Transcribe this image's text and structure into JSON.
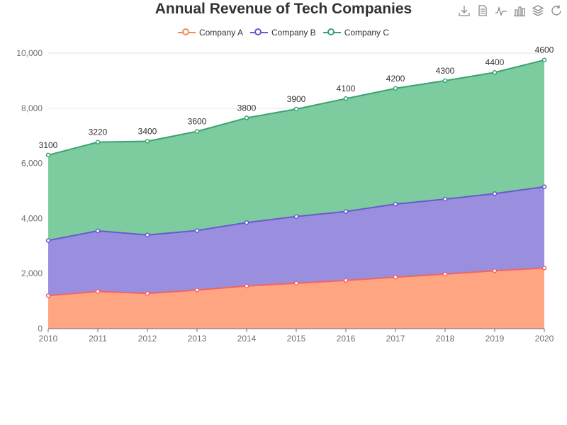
{
  "chart_data": {
    "type": "area",
    "stacked": true,
    "title": "Annual Revenue of Tech Companies",
    "categories": [
      "2010",
      "2011",
      "2012",
      "2013",
      "2014",
      "2015",
      "2016",
      "2017",
      "2018",
      "2019",
      "2020"
    ],
    "series": [
      {
        "name": "Company A",
        "color": "#ee6666",
        "fill": "#ffa07a",
        "values": [
          1200,
          1350,
          1280,
          1400,
          1550,
          1650,
          1750,
          1870,
          1980,
          2100,
          2200
        ]
      },
      {
        "name": "Company B",
        "color": "#6a5acd",
        "fill": "#9588dd",
        "values": [
          2000,
          2200,
          2120,
          2160,
          2300,
          2420,
          2500,
          2650,
          2720,
          2800,
          2950
        ]
      },
      {
        "name": "Company C",
        "color": "#3ba272",
        "fill": "#75c99a",
        "values": [
          3100,
          3220,
          3400,
          3600,
          3800,
          3900,
          4100,
          4200,
          4300,
          4400,
          4600
        ]
      }
    ],
    "data_labels_series": "Company C",
    "ylim": [
      0,
      10000
    ],
    "yticks": [
      0,
      2000,
      4000,
      6000,
      8000,
      10000
    ],
    "ytick_labels": [
      "0",
      "2,000",
      "4,000",
      "6,000",
      "8,000",
      "10,000"
    ],
    "grid": true,
    "legend_position": "top-center"
  },
  "toolbox": {
    "icons": [
      "download-icon",
      "data-view-icon",
      "line-chart-icon",
      "bar-chart-icon",
      "stack-icon",
      "restore-icon"
    ]
  }
}
